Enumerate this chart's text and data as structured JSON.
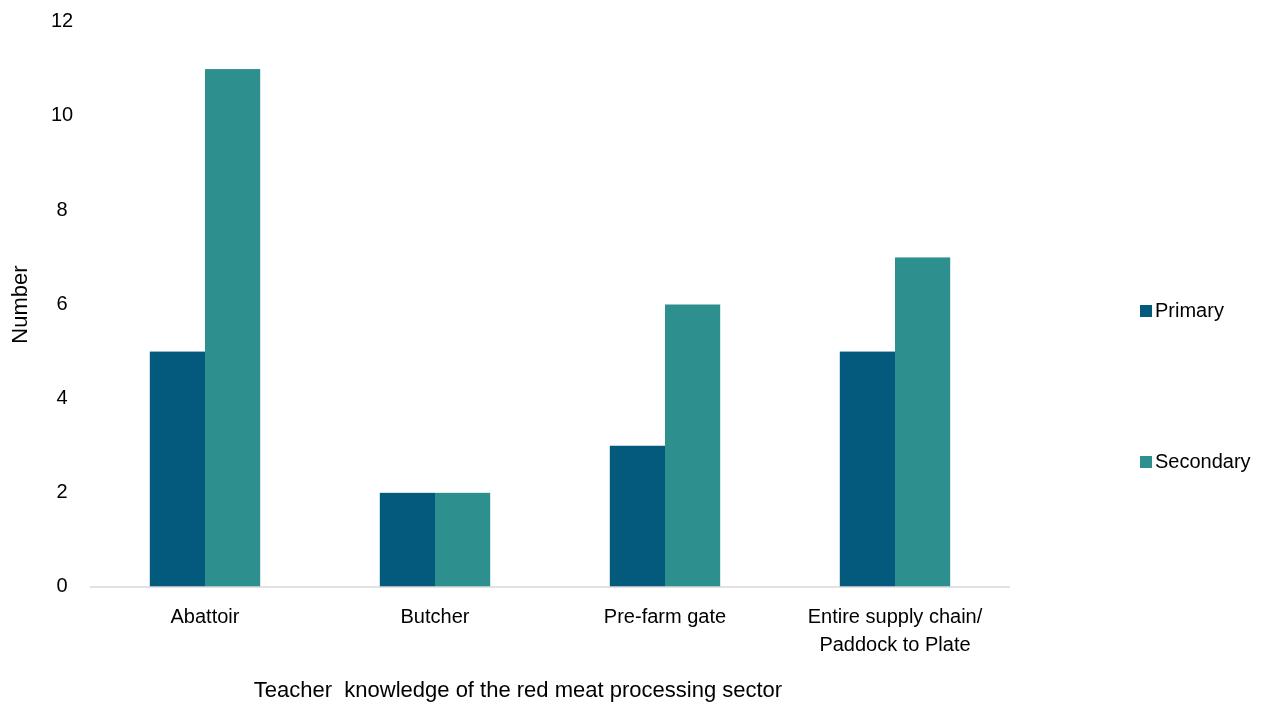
{
  "chart_data": {
    "type": "bar",
    "xlabel": "Teacher  knowledge of the red meat processing sector",
    "ylabel": "Number",
    "categories": [
      "Abattoir",
      "Butcher",
      "Pre-farm gate",
      "Entire supply chain/ Paddock to Plate"
    ],
    "series": [
      {
        "name": "Primary",
        "color": "#045a7c",
        "values": [
          5,
          2,
          3,
          5
        ]
      },
      {
        "name": "Secondary",
        "color": "#2e8f8f",
        "values": [
          11,
          2,
          6,
          7
        ]
      }
    ],
    "ylim": [
      0,
      12
    ],
    "yticks": [
      0,
      2,
      4,
      6,
      8,
      10,
      12
    ],
    "grid": false,
    "legend": "right"
  }
}
